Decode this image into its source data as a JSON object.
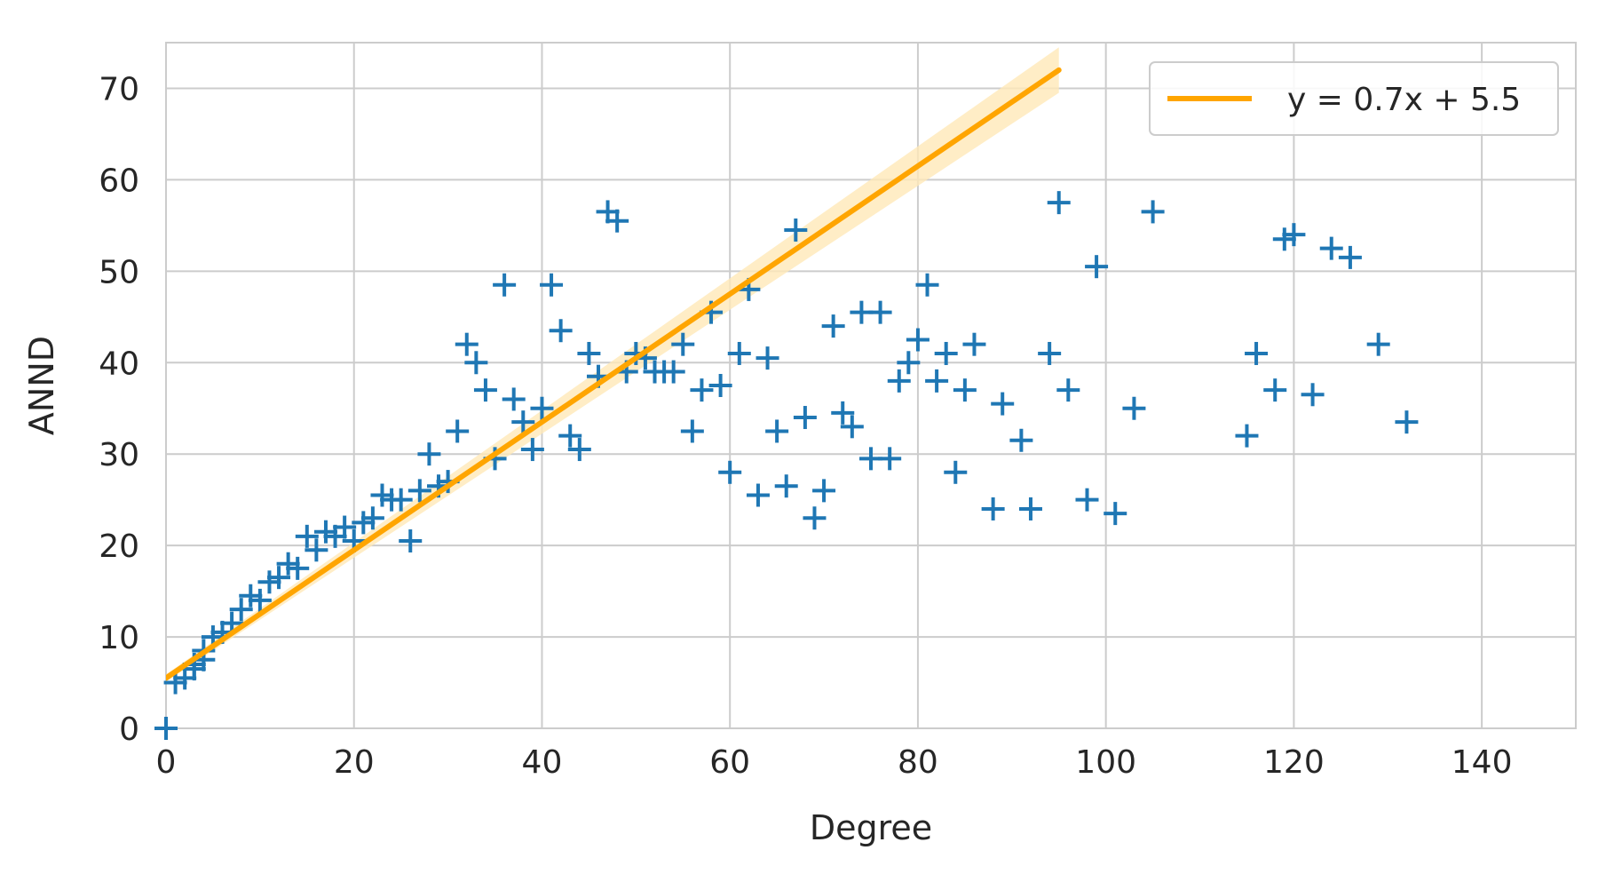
{
  "chart_data": {
    "type": "scatter",
    "xlabel": "Degree",
    "ylabel": "ANND",
    "xlim": [
      0,
      150
    ],
    "ylim": [
      0,
      75
    ],
    "xticks": [
      "0",
      "20",
      "40",
      "60",
      "80",
      "100",
      "120",
      "140"
    ],
    "yticks": [
      "0",
      "10",
      "20",
      "30",
      "40",
      "50",
      "60",
      "70"
    ],
    "grid": true,
    "legend_position": "top-right",
    "series": [
      {
        "marker": "plus",
        "color": "#1f77b4",
        "points": [
          [
            0,
            0
          ],
          [
            1,
            5
          ],
          [
            2,
            5.5
          ],
          [
            3,
            6.5
          ],
          [
            3,
            7
          ],
          [
            4,
            7.5
          ],
          [
            4,
            8.5
          ],
          [
            5,
            10
          ],
          [
            6,
            10.5
          ],
          [
            7,
            11.5
          ],
          [
            8,
            13
          ],
          [
            9,
            14.5
          ],
          [
            10,
            14
          ],
          [
            11,
            16
          ],
          [
            12,
            16.5
          ],
          [
            13,
            18
          ],
          [
            14,
            17.5
          ],
          [
            15,
            21
          ],
          [
            16,
            19.5
          ],
          [
            17,
            21.5
          ],
          [
            18,
            21
          ],
          [
            19,
            22
          ],
          [
            20,
            20.5
          ],
          [
            21,
            22.5
          ],
          [
            22,
            23
          ],
          [
            23,
            25.5
          ],
          [
            24,
            25
          ],
          [
            25,
            25
          ],
          [
            26,
            20.5
          ],
          [
            27,
            26
          ],
          [
            28,
            30
          ],
          [
            29,
            26.5
          ],
          [
            30,
            27
          ],
          [
            31,
            32.5
          ],
          [
            32,
            42
          ],
          [
            33,
            40
          ],
          [
            34,
            37
          ],
          [
            35,
            29.5
          ],
          [
            36,
            48.5
          ],
          [
            37,
            36
          ],
          [
            38,
            33.5
          ],
          [
            39,
            30.5
          ],
          [
            40,
            35
          ],
          [
            41,
            48.5
          ],
          [
            42,
            43.5
          ],
          [
            43,
            32
          ],
          [
            44,
            30.5
          ],
          [
            45,
            41
          ],
          [
            46,
            38.5
          ],
          [
            47,
            56.5
          ],
          [
            48,
            55.5
          ],
          [
            49,
            39
          ],
          [
            50,
            41
          ],
          [
            51,
            40.5
          ],
          [
            52,
            39
          ],
          [
            53,
            39
          ],
          [
            54,
            39
          ],
          [
            55,
            42
          ],
          [
            56,
            32.5
          ],
          [
            57,
            37
          ],
          [
            58,
            45.5
          ],
          [
            59,
            37.5
          ],
          [
            60,
            28
          ],
          [
            61,
            41
          ],
          [
            62,
            48
          ],
          [
            63,
            25.5
          ],
          [
            64,
            40.5
          ],
          [
            65,
            32.5
          ],
          [
            66,
            26.5
          ],
          [
            67,
            54.5
          ],
          [
            68,
            34
          ],
          [
            69,
            23
          ],
          [
            70,
            26
          ],
          [
            71,
            44
          ],
          [
            72,
            34.5
          ],
          [
            73,
            33
          ],
          [
            74,
            45.5
          ],
          [
            75,
            29.5
          ],
          [
            76,
            45.5
          ],
          [
            77,
            29.5
          ],
          [
            78,
            38
          ],
          [
            79,
            40
          ],
          [
            80,
            42.5
          ],
          [
            81,
            48.5
          ],
          [
            82,
            38
          ],
          [
            83,
            41
          ],
          [
            84,
            28
          ],
          [
            85,
            37
          ],
          [
            86,
            42
          ],
          [
            88,
            24
          ],
          [
            89,
            35.5
          ],
          [
            91,
            31.5
          ],
          [
            92,
            24
          ],
          [
            94,
            41
          ],
          [
            95,
            57.5
          ],
          [
            96,
            37
          ],
          [
            98,
            25
          ],
          [
            99,
            50.5
          ],
          [
            101,
            23.5
          ],
          [
            103,
            35
          ],
          [
            105,
            56.5
          ],
          [
            115,
            32
          ],
          [
            116,
            41
          ],
          [
            118,
            37
          ],
          [
            119,
            53.5
          ],
          [
            120,
            54
          ],
          [
            122,
            36.5
          ],
          [
            124,
            52.5
          ],
          [
            126,
            51.5
          ],
          [
            129,
            42
          ],
          [
            132,
            33.5
          ]
        ]
      }
    ],
    "fit_line": {
      "name": "y = 0.7x + 5.5",
      "slope": 0.7,
      "intercept": 5.5,
      "x_range": [
        0,
        95
      ],
      "color": "#ffa500",
      "band_color": "#ffe8b8"
    }
  }
}
